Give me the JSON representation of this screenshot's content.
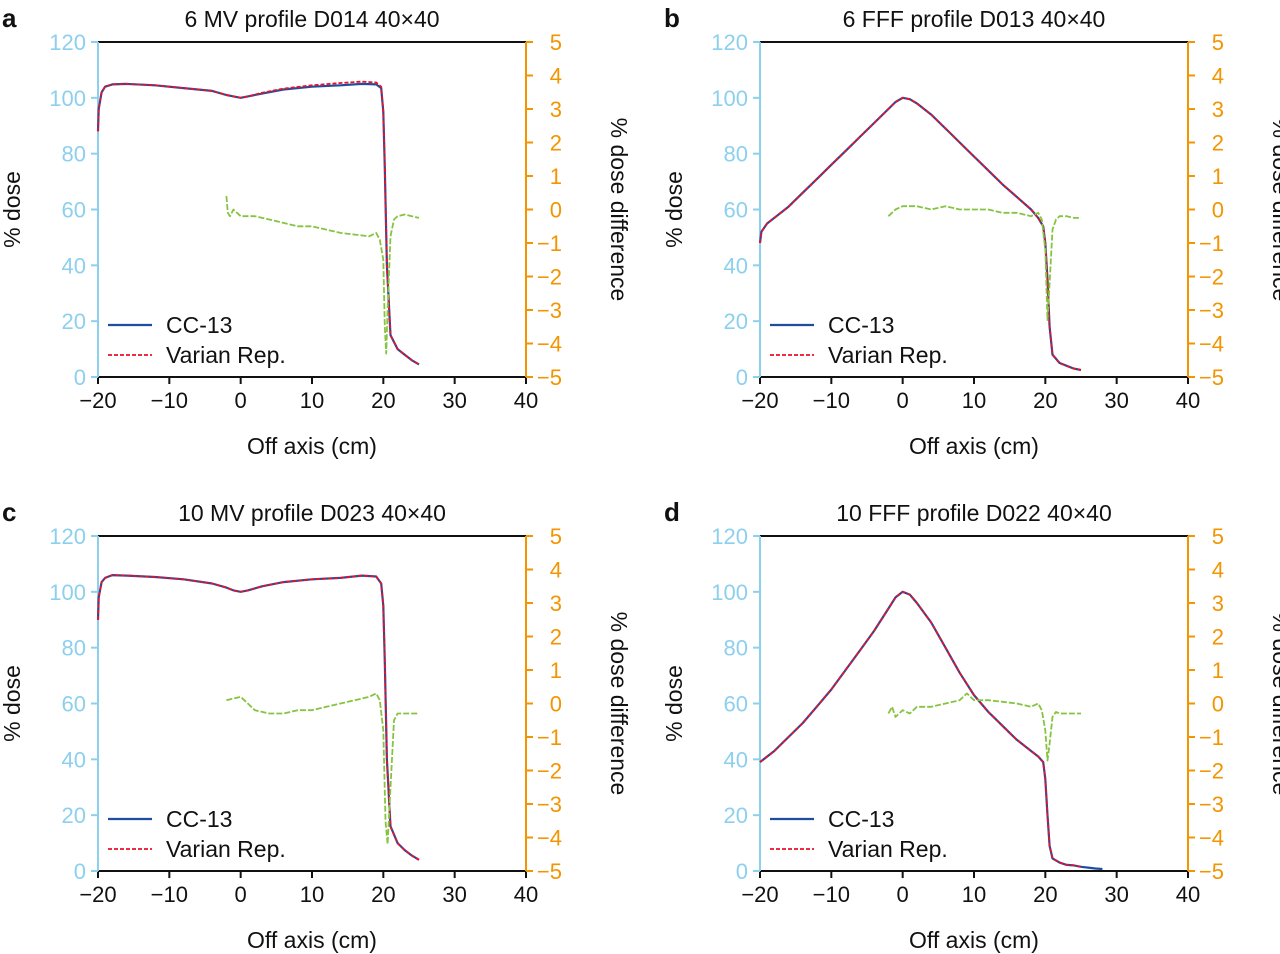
{
  "chart_data": [
    {
      "type": "line",
      "panel_label": "a",
      "title": "6 MV profile D014 40×40",
      "xlabel": "Off axis (cm)",
      "ylabel": "% dose",
      "ylabel_right": "% dose difference",
      "xlim": [
        -20,
        40
      ],
      "ylim": [
        0,
        120
      ],
      "ylim_right": [
        -5,
        5
      ],
      "xticks": [
        "−20",
        "−10",
        "0",
        "10",
        "20",
        "30",
        "40"
      ],
      "yticks": [
        "0",
        "20",
        "40",
        "60",
        "80",
        "100",
        "120"
      ],
      "yticks_right": [
        "−5",
        "−4",
        "−3",
        "−2",
        "−1",
        "0",
        "1",
        "2",
        "3",
        "4",
        "5"
      ],
      "legend": {
        "position": "bottom-left",
        "entries": [
          "CC-13",
          "Varian Rep."
        ]
      },
      "colors": {
        "cc13": "#1f4e9f",
        "varian": "#e8122a",
        "difference": "#86c440",
        "left_axis": "#8dd0ee",
        "right_axis": "#f29500"
      },
      "series": [
        {
          "name": "CC-13",
          "axis": "left",
          "x": [
            -20,
            -19.9,
            -19.5,
            -19,
            -18,
            -16,
            -12,
            -8,
            -4,
            -2,
            -1,
            0,
            1,
            3,
            6,
            10,
            14,
            17,
            19,
            19.7,
            20,
            20.2,
            20.5,
            21,
            22,
            23,
            24,
            25
          ],
          "y": [
            88,
            96,
            102,
            104,
            104.8,
            105,
            104.5,
            103.5,
            102.5,
            101,
            100.5,
            100,
            100.5,
            101.5,
            103,
            104,
            104.5,
            105,
            104.8,
            103.5,
            95,
            75,
            40,
            15,
            10,
            8,
            6,
            4.5
          ]
        },
        {
          "name": "Varian Rep.",
          "axis": "left",
          "x": [
            -20,
            -19.9,
            -19.5,
            -19,
            -18,
            -16,
            -12,
            -8,
            -4,
            -2,
            -1,
            0,
            1,
            3,
            6,
            10,
            14,
            17,
            19,
            19.7,
            20,
            20.2,
            20.5,
            21,
            22,
            23,
            24,
            25
          ],
          "y": [
            88,
            96,
            102,
            104,
            104.8,
            105,
            104.5,
            103.5,
            102.5,
            101,
            100.5,
            100,
            100.5,
            101.8,
            103.3,
            104.5,
            105.3,
            105.8,
            105.5,
            104,
            95,
            75,
            40,
            15,
            10,
            8,
            6,
            4.5
          ]
        },
        {
          "name": "dose difference",
          "axis": "right",
          "x": [
            -2,
            -1.8,
            -1.5,
            -1,
            0,
            2,
            4,
            6,
            8,
            10,
            12,
            14,
            16,
            18,
            19,
            19.5,
            20,
            20.2,
            20.4,
            20.6,
            21,
            21.5,
            22,
            23,
            24,
            25
          ],
          "y": [
            0.4,
            -0.1,
            -0.2,
            0,
            -0.2,
            -0.2,
            -0.3,
            -0.4,
            -0.5,
            -0.5,
            -0.6,
            -0.7,
            -0.75,
            -0.8,
            -0.7,
            -0.9,
            -1.5,
            -3.5,
            -4.3,
            -3,
            -0.8,
            -0.3,
            -0.2,
            -0.15,
            -0.2,
            -0.25
          ]
        }
      ]
    },
    {
      "type": "line",
      "panel_label": "b",
      "title": "6 FFF profile D013 40×40",
      "xlabel": "Off axis (cm)",
      "ylabel": "% dose",
      "ylabel_right": "% dose difference",
      "xlim": [
        -20,
        40
      ],
      "ylim": [
        0,
        120
      ],
      "ylim_right": [
        -5,
        5
      ],
      "xticks": [
        "−20",
        "−10",
        "0",
        "10",
        "20",
        "30",
        "40"
      ],
      "yticks": [
        "0",
        "20",
        "40",
        "60",
        "80",
        "100",
        "120"
      ],
      "yticks_right": [
        "−5",
        "−4",
        "−3",
        "−2",
        "−1",
        "0",
        "1",
        "2",
        "3",
        "4",
        "5"
      ],
      "legend": {
        "position": "bottom-left",
        "entries": [
          "CC-13",
          "Varian Rep."
        ]
      },
      "colors": {
        "cc13": "#1f4e9f",
        "varian": "#e8122a",
        "difference": "#86c440",
        "left_axis": "#8dd0ee",
        "right_axis": "#f29500"
      },
      "series": [
        {
          "name": "CC-13",
          "axis": "left",
          "x": [
            -20,
            -19.8,
            -19,
            -18,
            -16,
            -14,
            -12,
            -10,
            -8,
            -6,
            -4,
            -2,
            -1,
            0,
            1,
            2,
            4,
            6,
            8,
            10,
            12,
            14,
            16,
            18,
            19,
            19.7,
            20,
            20.3,
            20.6,
            21,
            22,
            23,
            24,
            25
          ],
          "y": [
            48,
            52,
            55,
            57,
            61,
            66,
            71,
            76,
            81,
            86,
            91,
            96,
            98.5,
            100,
            99.5,
            98,
            94,
            89,
            84,
            79,
            74,
            69,
            64.5,
            60,
            57,
            54,
            48,
            35,
            18,
            8,
            5,
            4,
            3,
            2.5
          ]
        },
        {
          "name": "Varian Rep.",
          "axis": "left",
          "x": [
            -20,
            -19.8,
            -19,
            -18,
            -16,
            -14,
            -12,
            -10,
            -8,
            -6,
            -4,
            -2,
            -1,
            0,
            1,
            2,
            4,
            6,
            8,
            10,
            12,
            14,
            16,
            18,
            19,
            19.7,
            20,
            20.3,
            20.6,
            21,
            22,
            23,
            24,
            25
          ],
          "y": [
            48,
            52,
            55,
            57,
            61,
            66,
            71,
            76,
            81,
            86,
            91,
            96,
            98.5,
            100,
            99.5,
            98,
            94,
            89,
            84,
            79,
            74,
            69,
            64.5,
            60,
            57,
            54,
            48,
            35,
            18,
            8,
            5,
            4,
            3,
            2.5
          ]
        },
        {
          "name": "dose difference",
          "axis": "right",
          "x": [
            -2,
            -1,
            0,
            2,
            4,
            6,
            8,
            10,
            12,
            14,
            16,
            18,
            19,
            19.5,
            20,
            20.3,
            20.6,
            21,
            21.5,
            22,
            23,
            24,
            25
          ],
          "y": [
            -0.2,
            0,
            0.1,
            0.1,
            0,
            0.1,
            0,
            0,
            0,
            -0.1,
            -0.1,
            -0.2,
            -0.1,
            -0.3,
            -1.2,
            -3.3,
            -2.2,
            -0.6,
            -0.3,
            -0.2,
            -0.2,
            -0.25,
            -0.25
          ]
        }
      ]
    },
    {
      "type": "line",
      "panel_label": "c",
      "title": "10 MV profile D023 40×40",
      "xlabel": "Off axis (cm)",
      "ylabel": "% dose",
      "ylabel_right": "% dose difference",
      "xlim": [
        -20,
        40
      ],
      "ylim": [
        0,
        120
      ],
      "ylim_right": [
        -5,
        5
      ],
      "xticks": [
        "−20",
        "−10",
        "0",
        "10",
        "20",
        "30",
        "40"
      ],
      "yticks": [
        "0",
        "20",
        "40",
        "60",
        "80",
        "100",
        "120"
      ],
      "yticks_right": [
        "−5",
        "−4",
        "−3",
        "−2",
        "−1",
        "0",
        "1",
        "2",
        "3",
        "4",
        "5"
      ],
      "legend": {
        "position": "bottom-left",
        "entries": [
          "CC-13",
          "Varian Rep."
        ]
      },
      "colors": {
        "cc13": "#1f4e9f",
        "varian": "#e8122a",
        "difference": "#86c440",
        "left_axis": "#8dd0ee",
        "right_axis": "#f29500"
      },
      "series": [
        {
          "name": "CC-13",
          "axis": "left",
          "x": [
            -20,
            -19.9,
            -19.5,
            -19,
            -18,
            -16,
            -12,
            -8,
            -4,
            -2,
            -1,
            0,
            1,
            3,
            6,
            10,
            14,
            17,
            19,
            19.7,
            20,
            20.2,
            20.5,
            21,
            22,
            23,
            24,
            25
          ],
          "y": [
            90,
            98,
            103.5,
            105,
            106,
            105.8,
            105.3,
            104.5,
            103,
            101.5,
            100.5,
            100,
            100.5,
            102,
            103.5,
            104.5,
            105,
            105.8,
            105.5,
            103,
            95,
            75,
            40,
            16,
            10,
            7.5,
            5.5,
            4
          ]
        },
        {
          "name": "Varian Rep.",
          "axis": "left",
          "x": [
            -20,
            -19.9,
            -19.5,
            -19,
            -18,
            -16,
            -12,
            -8,
            -4,
            -2,
            -1,
            0,
            1,
            3,
            6,
            10,
            14,
            17,
            19,
            19.7,
            20,
            20.2,
            20.5,
            21,
            22,
            23,
            24,
            25
          ],
          "y": [
            90,
            98,
            103.5,
            105,
            106,
            105.8,
            105.3,
            104.5,
            103,
            101.5,
            100.5,
            100,
            100.5,
            102,
            103.5,
            104.5,
            105,
            105.8,
            105.5,
            103,
            95,
            75,
            40,
            16,
            10,
            7.5,
            5.5,
            4
          ]
        },
        {
          "name": "dose difference",
          "axis": "right",
          "x": [
            -2,
            -1,
            0,
            1,
            2,
            3,
            4,
            6,
            8,
            10,
            12,
            14,
            16,
            18,
            19,
            19.5,
            20,
            20.3,
            20.6,
            21,
            21.5,
            22,
            23,
            24,
            25
          ],
          "y": [
            0.1,
            0.15,
            0.2,
            0,
            -0.2,
            -0.25,
            -0.3,
            -0.3,
            -0.2,
            -0.2,
            -0.1,
            0,
            0.1,
            0.2,
            0.3,
            0.1,
            -0.8,
            -3.5,
            -4.2,
            -2.5,
            -0.5,
            -0.3,
            -0.3,
            -0.3,
            -0.3
          ]
        }
      ]
    },
    {
      "type": "line",
      "panel_label": "d",
      "title": "10 FFF profile D022 40×40",
      "xlabel": "Off axis (cm)",
      "ylabel": "% dose",
      "ylabel_right": "% dose difference",
      "xlim": [
        -20,
        40
      ],
      "ylim": [
        0,
        120
      ],
      "ylim_right": [
        -5,
        5
      ],
      "xticks": [
        "−20",
        "−10",
        "0",
        "10",
        "20",
        "30",
        "40"
      ],
      "yticks": [
        "0",
        "20",
        "40",
        "60",
        "80",
        "100",
        "120"
      ],
      "yticks_right": [
        "−5",
        "−4",
        "−3",
        "−2",
        "−1",
        "0",
        "1",
        "2",
        "3",
        "4",
        "5"
      ],
      "legend": {
        "position": "bottom-left",
        "entries": [
          "CC-13",
          "Varian Rep."
        ]
      },
      "colors": {
        "cc13": "#1f4e9f",
        "varian": "#e8122a",
        "difference": "#86c440",
        "left_axis": "#8dd0ee",
        "right_axis": "#f29500"
      },
      "series": [
        {
          "name": "CC-13",
          "axis": "left",
          "x": [
            -20,
            -18,
            -16,
            -14,
            -12,
            -10,
            -8,
            -6,
            -4,
            -2,
            -1,
            0,
            1,
            2,
            4,
            6,
            8,
            10,
            12,
            14,
            16,
            18,
            19,
            19.7,
            20,
            20.3,
            20.6,
            21,
            22,
            23,
            24,
            25,
            26,
            27,
            28
          ],
          "y": [
            39,
            43,
            48,
            53,
            59,
            65,
            72,
            79,
            86,
            94,
            98,
            100,
            99,
            96,
            89,
            80,
            71,
            63,
            57,
            52,
            47,
            43,
            41,
            39,
            33,
            20,
            9,
            4.5,
            3,
            2.2,
            2,
            1.5,
            1.2,
            0.9,
            0.7
          ]
        },
        {
          "name": "Varian Rep.",
          "axis": "left",
          "x": [
            -20,
            -18,
            -16,
            -14,
            -12,
            -10,
            -8,
            -6,
            -4,
            -2,
            -1,
            0,
            1,
            2,
            4,
            6,
            8,
            10,
            12,
            14,
            16,
            18,
            19,
            19.7,
            20,
            20.3,
            20.6,
            21,
            22,
            23,
            24,
            25
          ],
          "y": [
            39,
            43,
            48,
            53,
            59,
            65,
            72,
            79,
            86,
            94,
            98,
            100,
            99,
            96,
            89,
            80,
            71,
            63,
            57,
            52,
            47,
            43,
            41,
            39,
            33,
            20,
            9,
            4.5,
            3,
            2.2,
            2,
            1.5
          ]
        },
        {
          "name": "dose difference",
          "axis": "right",
          "x": [
            -2,
            -1.5,
            -1,
            0,
            1,
            2,
            4,
            6,
            8,
            9,
            10,
            12,
            14,
            16,
            18,
            19,
            19.5,
            20,
            20.3,
            20.6,
            21,
            21.5,
            22,
            23,
            24,
            25
          ],
          "y": [
            -0.3,
            -0.1,
            -0.4,
            -0.2,
            -0.3,
            -0.1,
            -0.1,
            0,
            0.1,
            0.3,
            0.1,
            0.1,
            0.05,
            0,
            -0.1,
            0,
            -0.2,
            -0.8,
            -1.7,
            -1.2,
            -0.4,
            -0.25,
            -0.3,
            -0.3,
            -0.3,
            -0.3
          ]
        }
      ]
    }
  ]
}
